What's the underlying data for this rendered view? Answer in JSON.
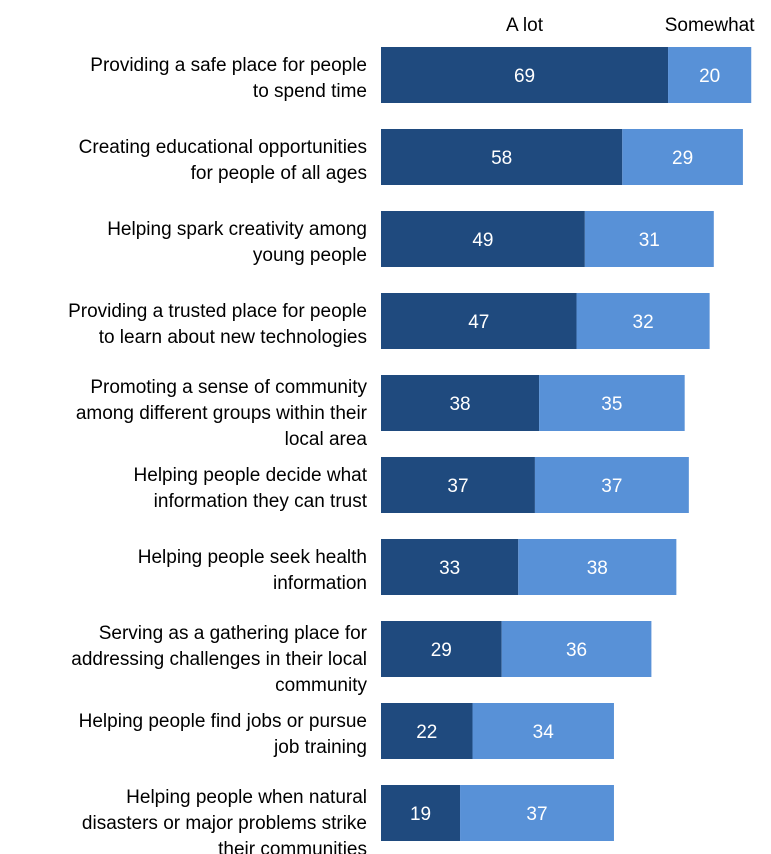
{
  "chart_data": {
    "type": "bar",
    "orientation": "horizontal",
    "stacked": true,
    "title": "",
    "xlabel": "",
    "ylabel": "",
    "grid": false,
    "legend": "top",
    "colors": {
      "A lot": "#1f4a7e",
      "Somewhat": "#5891d7",
      "data_label": "#ffffff"
    },
    "categories": [
      [
        "Providing a safe place for people",
        "to spend time"
      ],
      [
        "Creating educational opportunities",
        "for people of all ages"
      ],
      [
        "Helping spark creativity among",
        "young people"
      ],
      [
        "Providing a trusted place for people",
        "to learn about new technologies"
      ],
      [
        "Promoting a sense of community",
        "among different groups within their",
        "local area"
      ],
      [
        "Helping people decide what",
        "information they can trust"
      ],
      [
        "Helping people seek health",
        "information"
      ],
      [
        "Serving as a gathering place for",
        "addressing challenges in their local",
        "community"
      ],
      [
        "Helping people find jobs or pursue",
        "job training"
      ],
      [
        "Helping people when natural",
        "disasters or major problems strike",
        "their communities"
      ]
    ],
    "series": [
      {
        "name": "A lot",
        "values": [
          69,
          58,
          49,
          47,
          38,
          37,
          33,
          29,
          22,
          19
        ]
      },
      {
        "name": "Somewhat",
        "values": [
          20,
          29,
          31,
          32,
          35,
          37,
          38,
          36,
          34,
          37
        ]
      }
    ]
  }
}
